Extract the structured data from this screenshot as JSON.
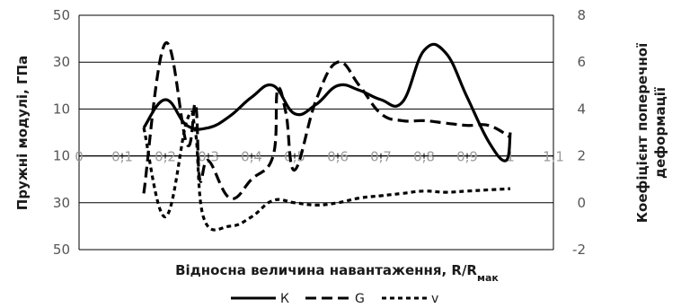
{
  "chart_data": {
    "type": "line",
    "xlabel_main": "Відносна величина навантаження, R/R",
    "xlabel_sub": "мак",
    "ylabel_left": "Пружні модулі, ГПа",
    "ylabel_right_line1": "Коефіцієнт поперечної",
    "ylabel_right_line2": "деформації",
    "x_tick_labels": [
      "0",
      "0,1",
      "0,2",
      "0,3",
      "0,4",
      "0,5",
      "0,6",
      "0,7",
      "0,8",
      "0,9",
      "1",
      "1,1"
    ],
    "y_left_tick_labels": [
      "50",
      "30",
      "10",
      "10",
      "30",
      "50"
    ],
    "y_left_tick_values": [
      50,
      30,
      10,
      -10,
      -30,
      -50
    ],
    "y_right_tick_labels": [
      "8",
      "6",
      "4",
      "2",
      "0",
      "-2"
    ],
    "y_right_tick_values": [
      8,
      6,
      4,
      2,
      0,
      -2
    ],
    "xlim": [
      0,
      1.1
    ],
    "ylim_left": [
      -50,
      50
    ],
    "ylim_right": [
      -2,
      8
    ],
    "x_axis_crosses_left_at": -10,
    "grid": "horizontal",
    "legend_position": "bottom",
    "series": [
      {
        "name": "К",
        "axis": "left",
        "dash": "solid",
        "x": [
          0.15,
          0.2,
          0.25,
          0.3,
          0.35,
          0.4,
          0.45,
          0.5,
          0.55,
          0.6,
          0.65,
          0.7,
          0.75,
          0.8,
          0.85,
          0.9,
          0.95,
          0.99,
          1.0
        ],
        "y": [
          2,
          14,
          3,
          2,
          7,
          15,
          20,
          8,
          12,
          20,
          18,
          14,
          13,
          35,
          34,
          15,
          -4,
          -12,
          0
        ]
      },
      {
        "name": "G",
        "axis": "left",
        "dash": "long",
        "x": [
          0.15,
          0.2,
          0.25,
          0.27,
          0.28,
          0.3,
          0.35,
          0.4,
          0.45,
          0.46,
          0.48,
          0.5,
          0.55,
          0.6,
          0.65,
          0.7,
          0.75,
          0.8,
          0.85,
          0.9,
          0.95,
          1.0
        ],
        "y": [
          -26,
          38,
          -5,
          12,
          -20,
          -12,
          -28,
          -20,
          -10,
          18,
          8,
          -16,
          14,
          30,
          20,
          8,
          5,
          5,
          4,
          3,
          3,
          -2
        ]
      },
      {
        "name": "ν",
        "axis": "right",
        "dash": "short",
        "x": [
          0.15,
          0.2,
          0.25,
          0.27,
          0.29,
          0.35,
          0.4,
          0.45,
          0.5,
          0.55,
          0.6,
          0.65,
          0.7,
          0.75,
          0.8,
          0.85,
          0.9,
          0.95,
          1.0
        ],
        "y": [
          3.2,
          -0.6,
          3.5,
          3.0,
          -0.7,
          -1.0,
          -0.6,
          0.1,
          0.0,
          -0.1,
          0.0,
          0.2,
          0.3,
          0.4,
          0.5,
          0.45,
          0.5,
          0.55,
          0.6
        ]
      }
    ],
    "legend": [
      {
        "label": "К",
        "dash": "solid"
      },
      {
        "label": "G",
        "dash": "long"
      },
      {
        "label": "v",
        "dash": "short"
      }
    ]
  }
}
